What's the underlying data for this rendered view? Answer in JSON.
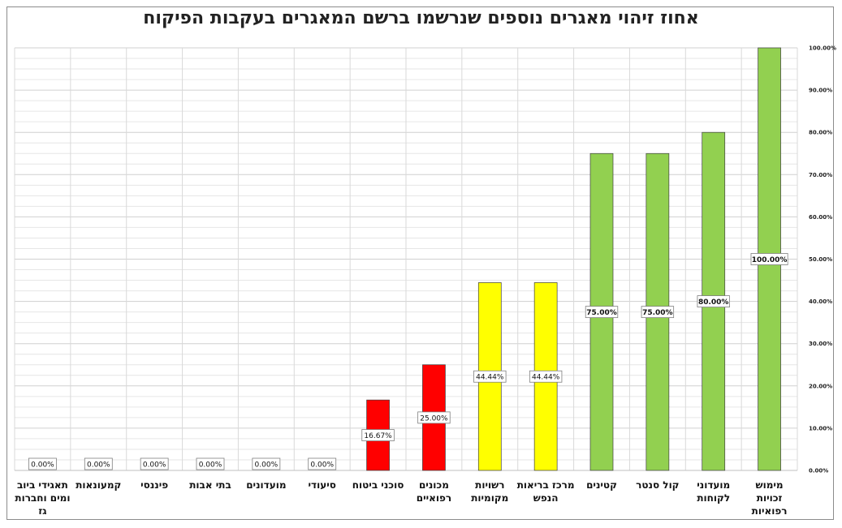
{
  "chart_data": {
    "type": "bar",
    "title": "אחוז זיהוי מאגרים נוספים שנרשמו ברשם המאגרים בעקבות הפיקוח",
    "xlabel": "",
    "ylabel": "",
    "ylim": [
      0,
      100
    ],
    "y_axis_position": "right",
    "y_ticks": [
      "0.00%",
      "10.00%",
      "20.00%",
      "30.00%",
      "40.00%",
      "50.00%",
      "60.00%",
      "70.00%",
      "80.00%",
      "90.00%",
      "100.00%"
    ],
    "grid": true,
    "categories": [
      "תאגידי ביוב ומים וחברות גז",
      "קמעונאות",
      "פיננסי",
      "בתי אבות",
      "מועדונים",
      "סיעודי",
      "סוכני ביטוח",
      "מכונים רפואיים",
      "רשויות מקומיות",
      "מרכז בריאות הנפש",
      "קטינים",
      "קול סנטר",
      "מועדוני לקוחות",
      "מימוש זכויות רפואיות"
    ],
    "values": [
      0,
      0,
      0,
      0,
      0,
      0,
      16.67,
      25,
      44.44,
      44.44,
      75,
      75,
      80,
      100
    ],
    "data_labels": [
      "0.00%",
      "0.00%",
      "0.00%",
      "0.00%",
      "0.00%",
      "0.00%",
      "16.67%",
      "25.00%",
      "44.44%",
      "44.44%",
      "75.00%",
      "75.00%",
      "80.00%",
      "100.00%"
    ],
    "bar_colors": [
      "#ff0000",
      "#ff0000",
      "#ff0000",
      "#ff0000",
      "#ff0000",
      "#ff0000",
      "#ff0000",
      "#ff0000",
      "#ffff00",
      "#ffff00",
      "#92d050",
      "#92d050",
      "#92d050",
      "#92d050"
    ],
    "color_legend": {
      "red": "#ff0000",
      "yellow": "#ffff00",
      "green": "#92d050"
    }
  }
}
